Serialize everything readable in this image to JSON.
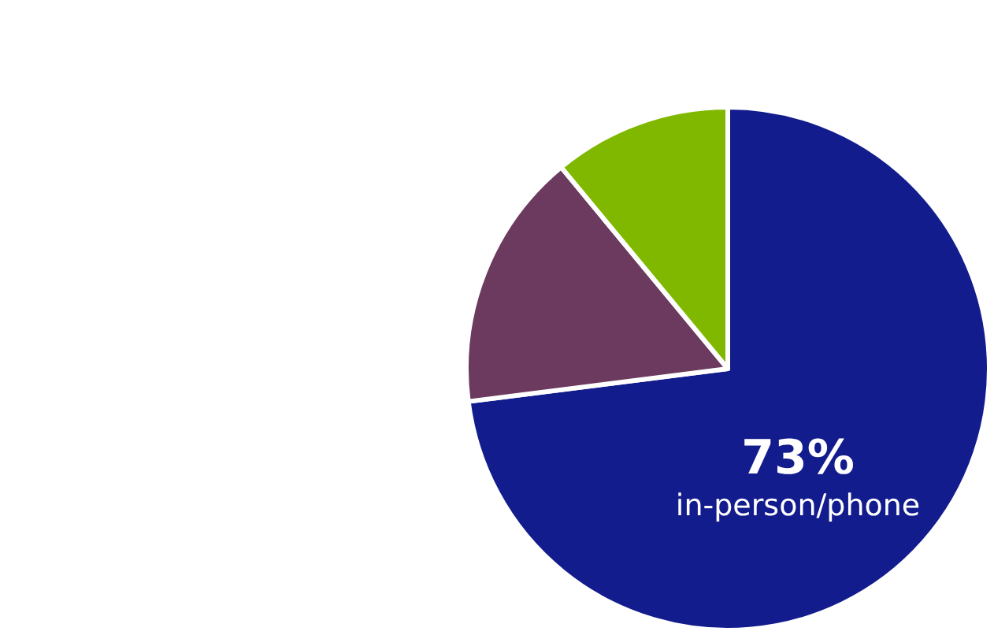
{
  "chart_data": {
    "type": "pie",
    "categories": [
      "in-person/phone",
      null,
      null
    ],
    "values": [
      73,
      16,
      11
    ],
    "colors": [
      "#131c8c",
      "#6b3a5e",
      "#80b800"
    ],
    "value_labels": [
      "73%",
      null,
      null
    ],
    "legend": false
  }
}
